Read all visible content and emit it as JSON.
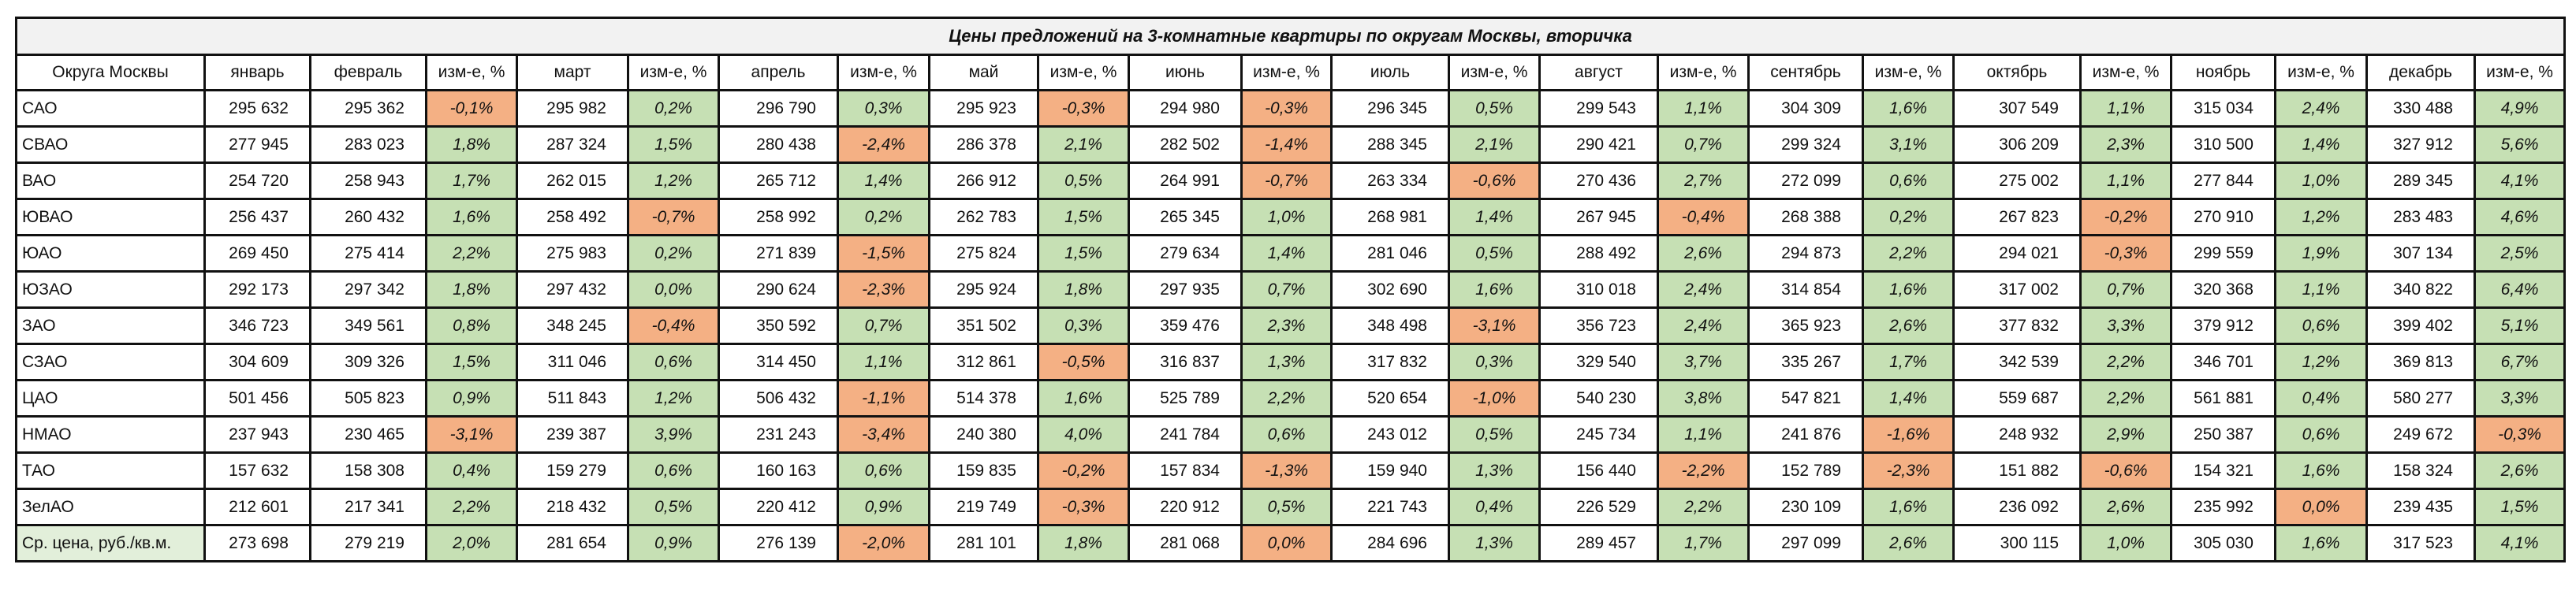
{
  "title": "Цены предложений на 3-комнатные квартиры по округам Москвы, вторичка",
  "colors": {
    "positive": "#c6e0b4",
    "negative": "#f4b084",
    "title_bg": "#f2f2f2",
    "avg_label_bg": "#e2efda"
  },
  "headers": [
    "Округа Москвы",
    "январь",
    "февраль",
    "изм-е, %",
    "март",
    "изм-е, %",
    "апрель",
    "изм-е, %",
    "май",
    "изм-е, %",
    "июнь",
    "изм-е, %",
    "июль",
    "изм-е, %",
    "август",
    "изм-е, %",
    "сентябрь",
    "изм-е, %",
    "октябрь",
    "изм-е, %",
    "ноябрь",
    "изм-е, %",
    "декабрь",
    "изм-е, %"
  ],
  "rows": [
    {
      "name": "САО",
      "jan": "295 632",
      "cells": [
        [
          "295 362",
          "-0,1%",
          "neg"
        ],
        [
          "295 982",
          "0,2%",
          "pos"
        ],
        [
          "296 790",
          "0,3%",
          "pos"
        ],
        [
          "295 923",
          "-0,3%",
          "neg"
        ],
        [
          "294 980",
          "-0,3%",
          "neg"
        ],
        [
          "296 345",
          "0,5%",
          "pos"
        ],
        [
          "299 543",
          "1,1%",
          "pos"
        ],
        [
          "304 309",
          "1,6%",
          "pos"
        ],
        [
          "307 549",
          "1,1%",
          "pos"
        ],
        [
          "315 034",
          "2,4%",
          "pos"
        ],
        [
          "330 488",
          "4,9%",
          "pos"
        ]
      ]
    },
    {
      "name": "СВАО",
      "jan": "277 945",
      "cells": [
        [
          "283 023",
          "1,8%",
          "pos"
        ],
        [
          "287 324",
          "1,5%",
          "pos"
        ],
        [
          "280 438",
          "-2,4%",
          "neg"
        ],
        [
          "286 378",
          "2,1%",
          "pos"
        ],
        [
          "282 502",
          "-1,4%",
          "neg"
        ],
        [
          "288 345",
          "2,1%",
          "pos"
        ],
        [
          "290 421",
          "0,7%",
          "pos"
        ],
        [
          "299 324",
          "3,1%",
          "pos"
        ],
        [
          "306 209",
          "2,3%",
          "pos"
        ],
        [
          "310 500",
          "1,4%",
          "pos"
        ],
        [
          "327 912",
          "5,6%",
          "pos"
        ]
      ]
    },
    {
      "name": "ВАО",
      "jan": "254 720",
      "cells": [
        [
          "258 943",
          "1,7%",
          "pos"
        ],
        [
          "262 015",
          "1,2%",
          "pos"
        ],
        [
          "265 712",
          "1,4%",
          "pos"
        ],
        [
          "266 912",
          "0,5%",
          "pos"
        ],
        [
          "264 991",
          "-0,7%",
          "neg"
        ],
        [
          "263 334",
          "-0,6%",
          "neg"
        ],
        [
          "270 436",
          "2,7%",
          "pos"
        ],
        [
          "272 099",
          "0,6%",
          "pos"
        ],
        [
          "275 002",
          "1,1%",
          "pos"
        ],
        [
          "277 844",
          "1,0%",
          "pos"
        ],
        [
          "289 345",
          "4,1%",
          "pos"
        ]
      ]
    },
    {
      "name": "ЮВАО",
      "jan": "256 437",
      "cells": [
        [
          "260 432",
          "1,6%",
          "pos"
        ],
        [
          "258 492",
          "-0,7%",
          "neg"
        ],
        [
          "258 992",
          "0,2%",
          "pos"
        ],
        [
          "262 783",
          "1,5%",
          "pos"
        ],
        [
          "265 345",
          "1,0%",
          "pos"
        ],
        [
          "268 981",
          "1,4%",
          "pos"
        ],
        [
          "267 945",
          "-0,4%",
          "neg"
        ],
        [
          "268 388",
          "0,2%",
          "pos"
        ],
        [
          "267 823",
          "-0,2%",
          "neg"
        ],
        [
          "270 910",
          "1,2%",
          "pos"
        ],
        [
          "283 483",
          "4,6%",
          "pos"
        ]
      ]
    },
    {
      "name": "ЮАО",
      "jan": "269 450",
      "cells": [
        [
          "275 414",
          "2,2%",
          "pos"
        ],
        [
          "275 983",
          "0,2%",
          "pos"
        ],
        [
          "271 839",
          "-1,5%",
          "neg"
        ],
        [
          "275 824",
          "1,5%",
          "pos"
        ],
        [
          "279 634",
          "1,4%",
          "pos"
        ],
        [
          "281 046",
          "0,5%",
          "pos"
        ],
        [
          "288 492",
          "2,6%",
          "pos"
        ],
        [
          "294 873",
          "2,2%",
          "pos"
        ],
        [
          "294 021",
          "-0,3%",
          "neg"
        ],
        [
          "299 559",
          "1,9%",
          "pos"
        ],
        [
          "307 134",
          "2,5%",
          "pos"
        ]
      ]
    },
    {
      "name": "ЮЗАО",
      "jan": "292 173",
      "cells": [
        [
          "297 342",
          "1,8%",
          "pos"
        ],
        [
          "297 432",
          "0,0%",
          "pos"
        ],
        [
          "290 624",
          "-2,3%",
          "neg"
        ],
        [
          "295 924",
          "1,8%",
          "pos"
        ],
        [
          "297 935",
          "0,7%",
          "pos"
        ],
        [
          "302 690",
          "1,6%",
          "pos"
        ],
        [
          "310 018",
          "2,4%",
          "pos"
        ],
        [
          "314 854",
          "1,6%",
          "pos"
        ],
        [
          "317 002",
          "0,7%",
          "pos"
        ],
        [
          "320 368",
          "1,1%",
          "pos"
        ],
        [
          "340 822",
          "6,4%",
          "pos"
        ]
      ]
    },
    {
      "name": "ЗАО",
      "jan": "346 723",
      "cells": [
        [
          "349 561",
          "0,8%",
          "pos"
        ],
        [
          "348 245",
          "-0,4%",
          "neg"
        ],
        [
          "350 592",
          "0,7%",
          "pos"
        ],
        [
          "351 502",
          "0,3%",
          "pos"
        ],
        [
          "359 476",
          "2,3%",
          "pos"
        ],
        [
          "348 498",
          "-3,1%",
          "neg"
        ],
        [
          "356 723",
          "2,4%",
          "pos"
        ],
        [
          "365 923",
          "2,6%",
          "pos"
        ],
        [
          "377 832",
          "3,3%",
          "pos"
        ],
        [
          "379 912",
          "0,6%",
          "pos"
        ],
        [
          "399 402",
          "5,1%",
          "pos"
        ]
      ]
    },
    {
      "name": "СЗАО",
      "jan": "304 609",
      "cells": [
        [
          "309 326",
          "1,5%",
          "pos"
        ],
        [
          "311 046",
          "0,6%",
          "pos"
        ],
        [
          "314 450",
          "1,1%",
          "pos"
        ],
        [
          "312 861",
          "-0,5%",
          "neg"
        ],
        [
          "316 837",
          "1,3%",
          "pos"
        ],
        [
          "317 832",
          "0,3%",
          "pos"
        ],
        [
          "329 540",
          "3,7%",
          "pos"
        ],
        [
          "335 267",
          "1,7%",
          "pos"
        ],
        [
          "342 539",
          "2,2%",
          "pos"
        ],
        [
          "346 701",
          "1,2%",
          "pos"
        ],
        [
          "369 813",
          "6,7%",
          "pos"
        ]
      ]
    },
    {
      "name": "ЦАО",
      "jan": "501 456",
      "cells": [
        [
          "505 823",
          "0,9%",
          "pos"
        ],
        [
          "511 843",
          "1,2%",
          "pos"
        ],
        [
          "506 432",
          "-1,1%",
          "neg"
        ],
        [
          "514 378",
          "1,6%",
          "pos"
        ],
        [
          "525 789",
          "2,2%",
          "pos"
        ],
        [
          "520 654",
          "-1,0%",
          "neg"
        ],
        [
          "540 230",
          "3,8%",
          "pos"
        ],
        [
          "547 821",
          "1,4%",
          "pos"
        ],
        [
          "559 687",
          "2,2%",
          "pos"
        ],
        [
          "561 881",
          "0,4%",
          "pos"
        ],
        [
          "580 277",
          "3,3%",
          "pos"
        ]
      ]
    },
    {
      "name": "НМАО",
      "jan": "237 943",
      "cells": [
        [
          "230 465",
          "-3,1%",
          "neg"
        ],
        [
          "239 387",
          "3,9%",
          "pos"
        ],
        [
          "231 243",
          "-3,4%",
          "neg"
        ],
        [
          "240 380",
          "4,0%",
          "pos"
        ],
        [
          "241 784",
          "0,6%",
          "pos"
        ],
        [
          "243 012",
          "0,5%",
          "pos"
        ],
        [
          "245 734",
          "1,1%",
          "pos"
        ],
        [
          "241 876",
          "-1,6%",
          "neg"
        ],
        [
          "248 932",
          "2,9%",
          "pos"
        ],
        [
          "250 387",
          "0,6%",
          "pos"
        ],
        [
          "249 672",
          "-0,3%",
          "neg"
        ]
      ]
    },
    {
      "name": "ТАО",
      "jan": "157 632",
      "cells": [
        [
          "158 308",
          "0,4%",
          "pos"
        ],
        [
          "159 279",
          "0,6%",
          "pos"
        ],
        [
          "160 163",
          "0,6%",
          "pos"
        ],
        [
          "159 835",
          "-0,2%",
          "neg"
        ],
        [
          "157 834",
          "-1,3%",
          "neg"
        ],
        [
          "159 940",
          "1,3%",
          "pos"
        ],
        [
          "156 440",
          "-2,2%",
          "neg"
        ],
        [
          "152 789",
          "-2,3%",
          "neg"
        ],
        [
          "151 882",
          "-0,6%",
          "neg"
        ],
        [
          "154 321",
          "1,6%",
          "pos"
        ],
        [
          "158 324",
          "2,6%",
          "pos"
        ]
      ]
    },
    {
      "name": "ЗелАО",
      "jan": "212 601",
      "cells": [
        [
          "217 341",
          "2,2%",
          "pos"
        ],
        [
          "218 432",
          "0,5%",
          "pos"
        ],
        [
          "220 412",
          "0,9%",
          "pos"
        ],
        [
          "219 749",
          "-0,3%",
          "neg"
        ],
        [
          "220 912",
          "0,5%",
          "pos"
        ],
        [
          "221 743",
          "0,4%",
          "pos"
        ],
        [
          "226 529",
          "2,2%",
          "pos"
        ],
        [
          "230 109",
          "1,6%",
          "pos"
        ],
        [
          "236 092",
          "2,6%",
          "pos"
        ],
        [
          "235 992",
          "0,0%",
          "neg"
        ],
        [
          "239 435",
          "1,5%",
          "pos"
        ]
      ]
    },
    {
      "name": "Ср. цена, руб./кв.м.",
      "jan": "273 698",
      "cells": [
        [
          "279 219",
          "2,0%",
          "pos"
        ],
        [
          "281 654",
          "0,9%",
          "pos"
        ],
        [
          "276 139",
          "-2,0%",
          "neg"
        ],
        [
          "281 101",
          "1,8%",
          "pos"
        ],
        [
          "281 068",
          "0,0%",
          "neg"
        ],
        [
          "284 696",
          "1,3%",
          "pos"
        ],
        [
          "289 457",
          "1,7%",
          "pos"
        ],
        [
          "297 099",
          "2,6%",
          "pos"
        ],
        [
          "300 115",
          "1,0%",
          "pos"
        ],
        [
          "305 030",
          "1,6%",
          "pos"
        ],
        [
          "317 523",
          "4,1%",
          "pos"
        ]
      ]
    }
  ]
}
